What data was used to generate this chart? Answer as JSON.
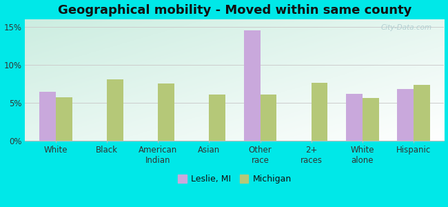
{
  "title": "Geographical mobility - Moved within same county",
  "categories": [
    "White",
    "Black",
    "American\nIndian",
    "Asian",
    "Other\nrace",
    "2+\nraces",
    "White\nalone",
    "Hispanic"
  ],
  "leslie_values": [
    6.4,
    null,
    null,
    null,
    14.5,
    null,
    6.2,
    6.8
  ],
  "michigan_values": [
    5.7,
    8.1,
    7.5,
    6.1,
    6.1,
    7.6,
    5.6,
    7.3
  ],
  "leslie_color": "#c9a8dc",
  "michigan_color": "#b5c878",
  "background_color": "#00e8e8",
  "ylabel_ticks": [
    "0%",
    "5%",
    "10%",
    "15%"
  ],
  "ytick_vals": [
    0,
    5,
    10,
    15
  ],
  "ylim": [
    0,
    16
  ],
  "bar_width": 0.32,
  "legend_leslie": "Leslie, MI",
  "legend_michigan": "Michigan",
  "watermark": "City-Data.com",
  "title_fontsize": 13,
  "tick_fontsize": 8.5,
  "legend_fontsize": 9
}
